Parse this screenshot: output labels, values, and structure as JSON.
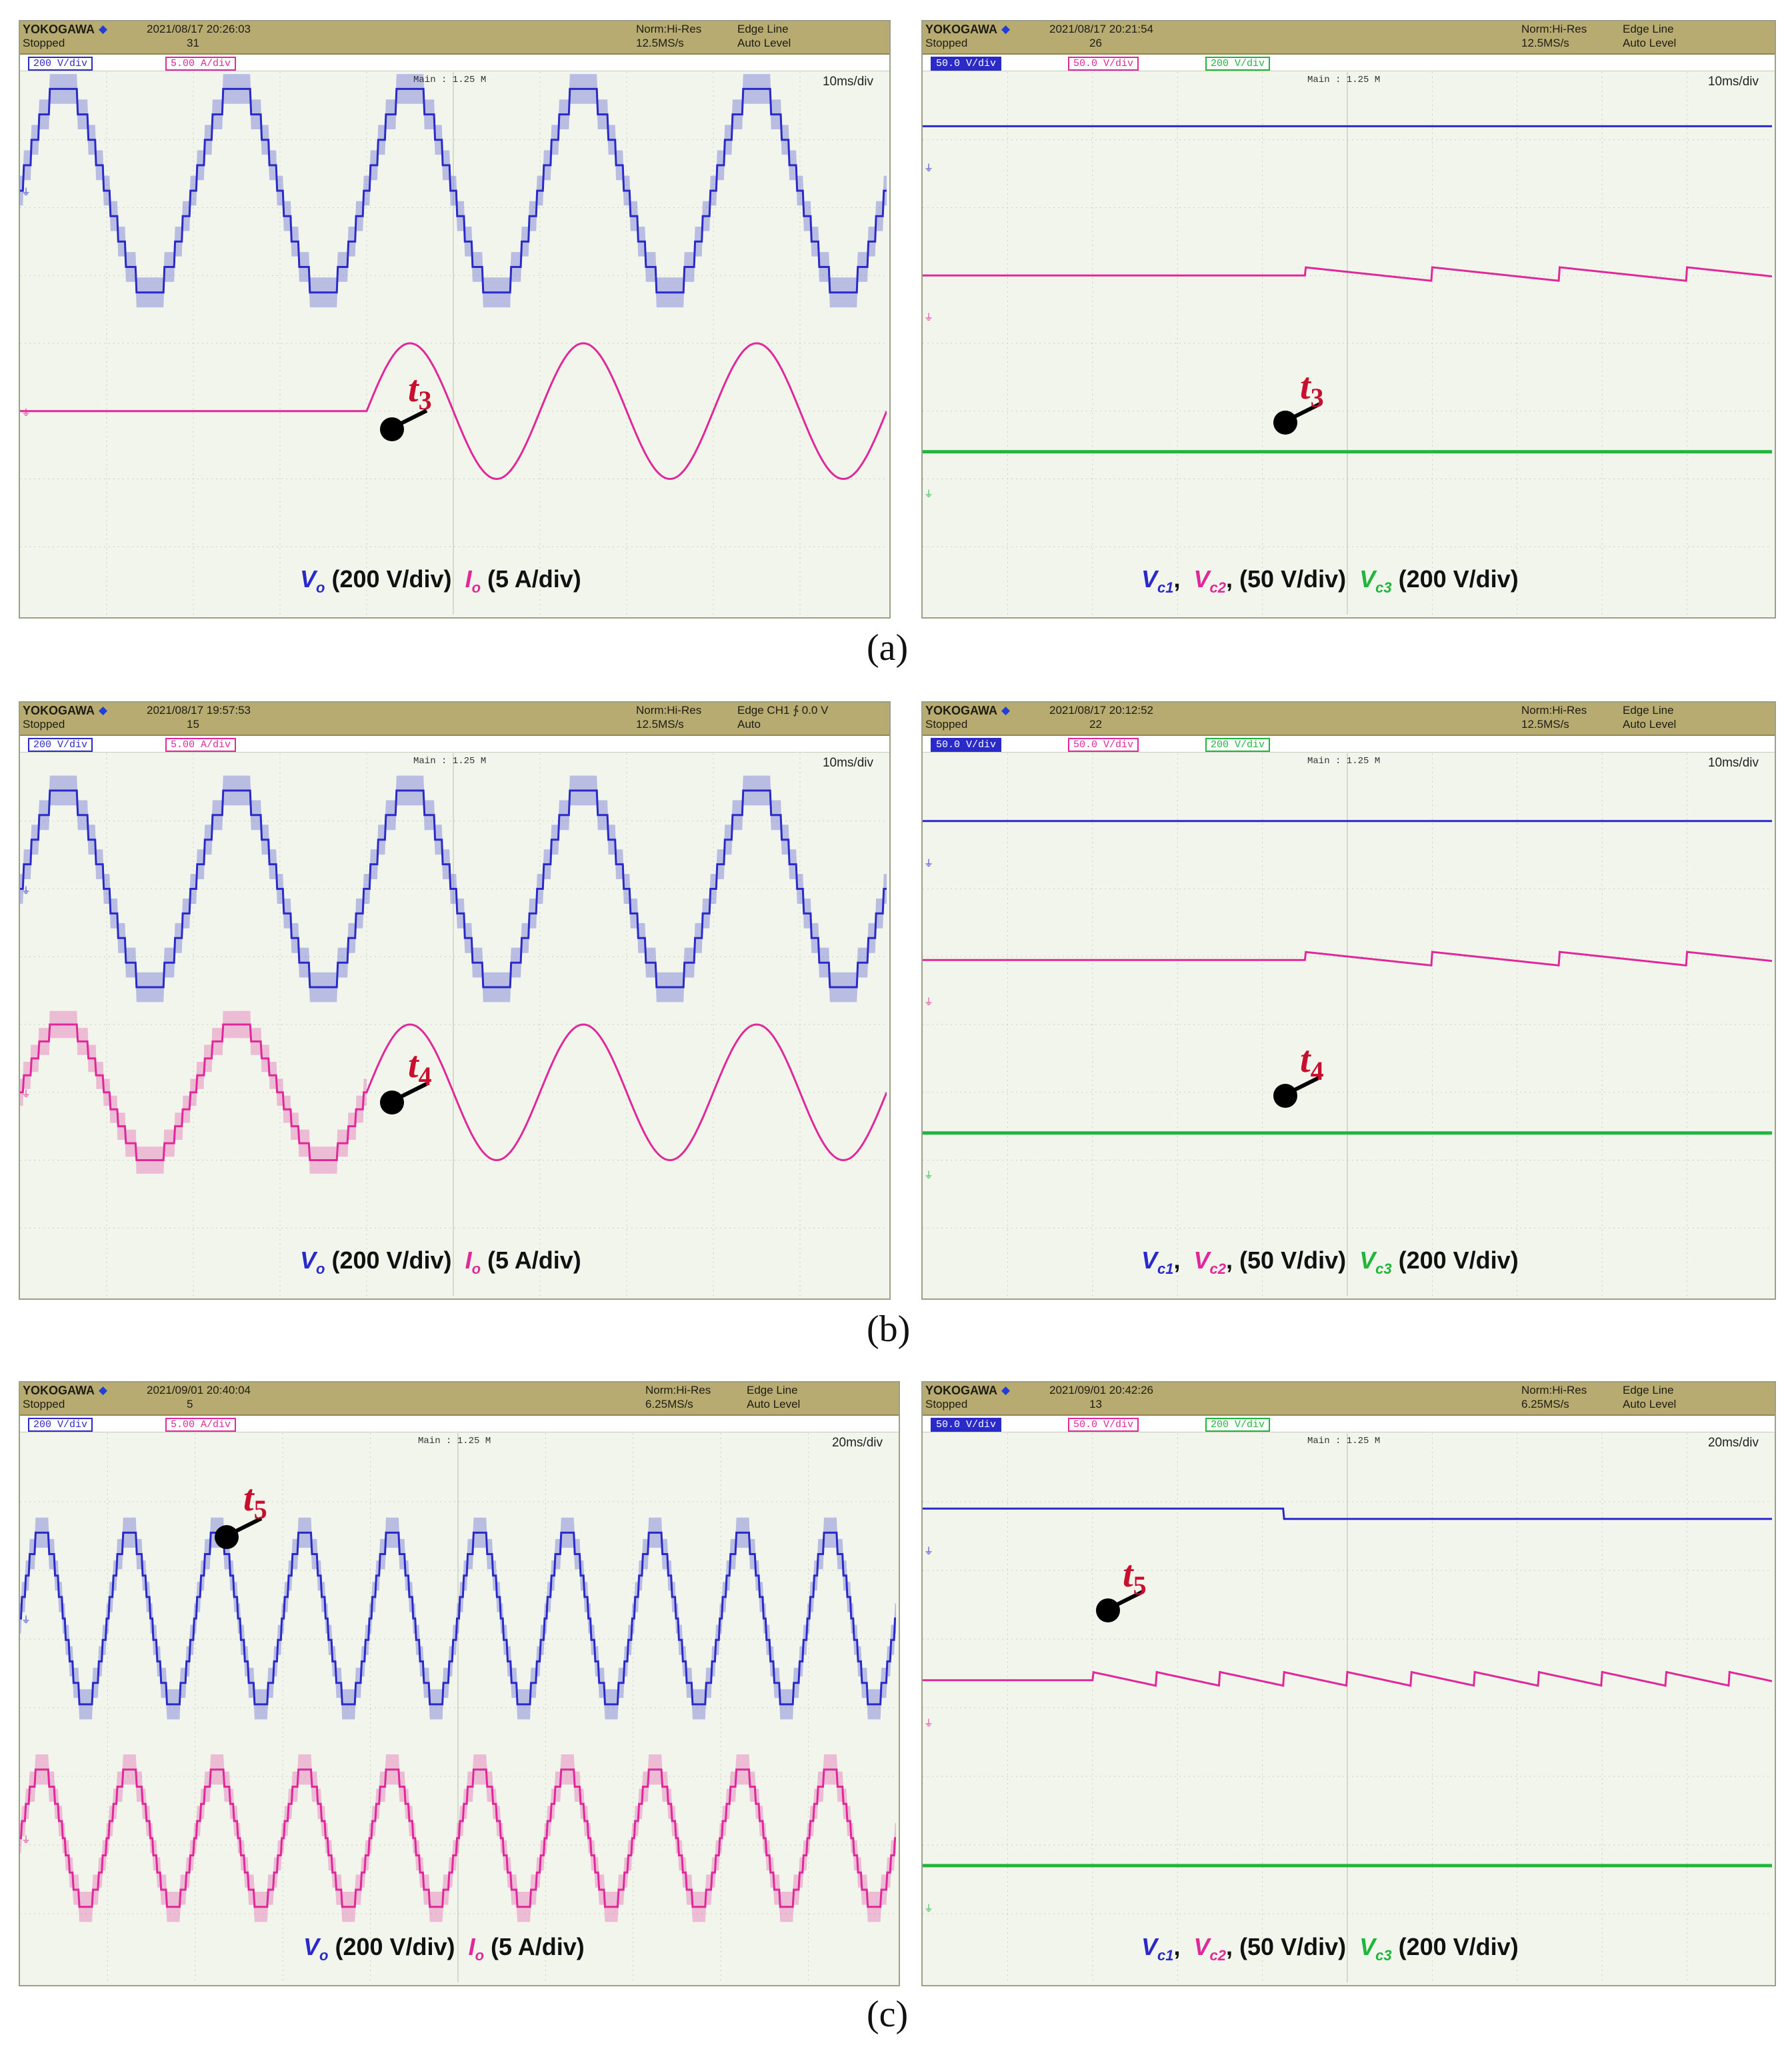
{
  "colors": {
    "vo": "#2a2ac8",
    "io": "#e0289a",
    "vc3": "#20b63c",
    "marker_text": "#c8102e"
  },
  "panels": [
    {
      "id": "a-left",
      "caption": "(a)",
      "brand": "YOKOGAWA",
      "diamond": "◆",
      "datetime": "2021/08/17 20:26:03",
      "status": "Stopped",
      "count": "31",
      "sample_mode": "Norm:Hi-Res",
      "sample_rate": "12.5MS/s",
      "trigger": "Edge Line",
      "trigger_level": "Auto Level",
      "ch1": "200 V/div",
      "ch2": "5.00 A/div",
      "ch3": "",
      "main_len": "Main : 1.25 M",
      "time_div": "10ms/div",
      "marker": "t",
      "marker_sub": "3",
      "legend_a": "V",
      "legend_a_sub": "o",
      "legend_a_unit": " (200 V/div)",
      "legend_b": "I",
      "legend_b_sub": "o",
      "legend_b_unit": " (5 A/div)"
    },
    {
      "id": "a-right",
      "brand": "YOKOGAWA",
      "diamond": "◆",
      "datetime": "2021/08/17 20:21:54",
      "status": "Stopped",
      "count": "26",
      "sample_mode": "Norm:Hi-Res",
      "sample_rate": "12.5MS/s",
      "trigger": "Edge Line",
      "trigger_level": "Auto Level",
      "ch1": "50.0 V/div",
      "ch2": "50.0 V/div",
      "ch3": "200 V/div",
      "main_len": "Main : 1.25 M",
      "time_div": "10ms/div",
      "marker": "t",
      "marker_sub": "3",
      "legend_a": "V",
      "legend_a_sub": "c1",
      "legend_a_unit": ",",
      "legend_b": "V",
      "legend_b_sub": "c2",
      "legend_b_unit": ", (50 V/div)",
      "legend_c": "V",
      "legend_c_sub": "c3",
      "legend_c_unit": " (200 V/div)"
    },
    {
      "id": "b-left",
      "caption": "(b)",
      "brand": "YOKOGAWA",
      "diamond": "◆",
      "datetime": "2021/08/17 19:57:53",
      "status": "Stopped",
      "count": "15",
      "sample_mode": "Norm:Hi-Res",
      "sample_rate": "12.5MS/s",
      "trigger": "Edge CH1 ∱ 0.0 V",
      "trigger_level": "Auto",
      "ch1": "200 V/div",
      "ch2": "5.00 A/div",
      "ch3": "",
      "main_len": "Main : 1.25 M",
      "time_div": "10ms/div",
      "marker": "t",
      "marker_sub": "4",
      "legend_a": "V",
      "legend_a_sub": "o",
      "legend_a_unit": " (200 V/div)",
      "legend_b": "I",
      "legend_b_sub": "o",
      "legend_b_unit": " (5 A/div)"
    },
    {
      "id": "b-right",
      "brand": "YOKOGAWA",
      "diamond": "◆",
      "datetime": "2021/08/17 20:12:52",
      "status": "Stopped",
      "count": "22",
      "sample_mode": "Norm:Hi-Res",
      "sample_rate": "12.5MS/s",
      "trigger": "Edge Line",
      "trigger_level": "Auto Level",
      "ch1": "50.0 V/div",
      "ch2": "50.0 V/div",
      "ch3": "200 V/div",
      "main_len": "Main : 1.25 M",
      "time_div": "10ms/div",
      "marker": "t",
      "marker_sub": "4",
      "legend_a": "V",
      "legend_a_sub": "c1",
      "legend_a_unit": ",",
      "legend_b": "V",
      "legend_b_sub": "c2",
      "legend_b_unit": ", (50 V/div)",
      "legend_c": "V",
      "legend_c_sub": "c3",
      "legend_c_unit": " (200 V/div)"
    },
    {
      "id": "c-left",
      "caption": "(c)",
      "brand": "YOKOGAWA",
      "diamond": "◆",
      "datetime": "2021/09/01 20:40:04",
      "status": "Stopped",
      "count": "5",
      "sample_mode": "Norm:Hi-Res",
      "sample_rate": "6.25MS/s",
      "trigger": "Edge Line",
      "trigger_level": "Auto Level",
      "ch1": "200 V/div",
      "ch2": "5.00 A/div",
      "ch3": "",
      "main_len": "Main : 1.25 M",
      "time_div": "20ms/div",
      "marker": "t",
      "marker_sub": "5",
      "legend_a": "V",
      "legend_a_sub": "o",
      "legend_a_unit": " (200 V/div)",
      "legend_b": "I",
      "legend_b_sub": "o",
      "legend_b_unit": " (5 A/div)"
    },
    {
      "id": "c-right",
      "brand": "YOKOGAWA",
      "diamond": "◆",
      "datetime": "2021/09/01 20:42:26",
      "status": "Stopped",
      "count": "13",
      "sample_mode": "Norm:Hi-Res",
      "sample_rate": "6.25MS/s",
      "trigger": "Edge Line",
      "trigger_level": "Auto Level",
      "ch1": "50.0 V/div",
      "ch2": "50.0 V/div",
      "ch3": "200 V/div",
      "main_len": "Main : 1.25 M",
      "time_div": "20ms/div",
      "marker": "t",
      "marker_sub": "5",
      "legend_a": "V",
      "legend_a_sub": "c1",
      "legend_a_unit": ",",
      "legend_b": "V",
      "legend_b_sub": "c2",
      "legend_b_unit": ", (50 V/div)",
      "legend_c": "V",
      "legend_c_sub": "c3",
      "legend_c_unit": " (200 V/div)"
    }
  ],
  "chart_data": [
    {
      "type": "line",
      "panel": "a-left",
      "x_unit": "ms",
      "x_range": [
        0,
        100
      ],
      "y_unit": "div",
      "y_range": [
        -4,
        4
      ],
      "grid": true,
      "series": [
        {
          "name": "Vo",
          "kind": "multilevel-sine",
          "period_ms": 20,
          "amplitude_div": 1.5,
          "offset_div": 2.25,
          "color": "#2a2ac8"
        },
        {
          "name": "Io",
          "kind": "step-start-sine",
          "start_ms": 40,
          "period_ms": 20,
          "amplitude_div": 1.0,
          "offset_div": -1.0,
          "color": "#e0289a"
        }
      ]
    },
    {
      "type": "line",
      "panel": "a-right",
      "x_unit": "ms",
      "x_range": [
        0,
        100
      ],
      "y_unit": "div",
      "y_range": [
        -4,
        4
      ],
      "grid": true,
      "series": [
        {
          "name": "Vc1",
          "level_div": 3.2,
          "color": "#2a2ac8"
        },
        {
          "name": "Vc2",
          "level_div": 1.0,
          "event_ms": 45,
          "color": "#e0289a"
        },
        {
          "name": "Vc3",
          "level_div": -1.6,
          "color": "#20b63c"
        }
      ]
    },
    {
      "type": "line",
      "panel": "b-left",
      "x_unit": "ms",
      "x_range": [
        0,
        100
      ],
      "y_unit": "div",
      "y_range": [
        -4,
        4
      ],
      "grid": true,
      "series": [
        {
          "name": "Vo",
          "kind": "multilevel-sine",
          "period_ms": 20,
          "amplitude_div": 1.45,
          "offset_div": 2.0,
          "color": "#2a2ac8"
        },
        {
          "name": "Io",
          "kind": "multilevel-then-sine",
          "switch_ms": 40,
          "period_ms": 20,
          "amplitude_div": 1.0,
          "offset_div": -1.0,
          "color": "#e0289a"
        }
      ]
    },
    {
      "type": "line",
      "panel": "b-right",
      "x_unit": "ms",
      "x_range": [
        0,
        100
      ],
      "y_unit": "div",
      "y_range": [
        -4,
        4
      ],
      "grid": true,
      "series": [
        {
          "name": "Vc1",
          "level_div": 3.0,
          "color": "#2a2ac8"
        },
        {
          "name": "Vc2",
          "level_div": 0.95,
          "event_ms": 45,
          "color": "#e0289a"
        },
        {
          "name": "Vc3",
          "level_div": -1.6,
          "color": "#20b63c"
        }
      ]
    },
    {
      "type": "line",
      "panel": "c-left",
      "x_unit": "ms",
      "x_range": [
        0,
        200
      ],
      "y_unit": "div",
      "y_range": [
        -4,
        4
      ],
      "grid": true,
      "series": [
        {
          "name": "Vo",
          "kind": "multilevel-sine",
          "period_ms": 20,
          "amplitude_div": 1.25,
          "offset_div": 1.3,
          "color": "#2a2ac8"
        },
        {
          "name": "Io",
          "kind": "multilevel-sine",
          "period_ms": 20,
          "amplitude_div": 1.0,
          "offset_div": -1.9,
          "color": "#e0289a"
        }
      ]
    },
    {
      "type": "line",
      "panel": "c-right",
      "x_unit": "ms",
      "x_range": [
        0,
        200
      ],
      "y_unit": "div",
      "y_range": [
        -4,
        4
      ],
      "grid": true,
      "series": [
        {
          "name": "Vc1",
          "level_div": 2.9,
          "event_ms": 85,
          "color": "#2a2ac8"
        },
        {
          "name": "Vc2",
          "level_div": 0.4,
          "event_ms": 40,
          "color": "#e0289a"
        },
        {
          "name": "Vc3",
          "level_div": -2.3,
          "color": "#20b63c"
        }
      ]
    }
  ]
}
